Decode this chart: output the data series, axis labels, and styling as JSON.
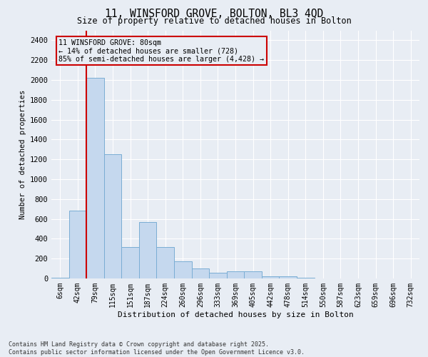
{
  "title": "11, WINSFORD GROVE, BOLTON, BL3 4QD",
  "subtitle": "Size of property relative to detached houses in Bolton",
  "xlabel": "Distribution of detached houses by size in Bolton",
  "ylabel": "Number of detached properties",
  "bar_values": [
    5,
    680,
    2020,
    1250,
    320,
    570,
    320,
    175,
    100,
    55,
    75,
    75,
    25,
    20,
    5,
    0,
    0,
    0,
    0,
    0,
    0
  ],
  "bin_labels": [
    "6sqm",
    "42sqm",
    "79sqm",
    "115sqm",
    "151sqm",
    "187sqm",
    "224sqm",
    "260sqm",
    "296sqm",
    "333sqm",
    "369sqm",
    "405sqm",
    "442sqm",
    "478sqm",
    "514sqm",
    "550sqm",
    "587sqm",
    "623sqm",
    "659sqm",
    "696sqm",
    "732sqm"
  ],
  "bar_color": "#c5d8ee",
  "bar_edge_color": "#7aadd4",
  "bg_color": "#e8edf4",
  "grid_color": "#d0d8e4",
  "vline_color": "#cc0000",
  "annotation_text": "11 WINSFORD GROVE: 80sqm\n← 14% of detached houses are smaller (728)\n85% of semi-detached houses are larger (4,428) →",
  "annotation_box_color": "#cc0000",
  "ylim": [
    0,
    2500
  ],
  "yticks": [
    0,
    200,
    400,
    600,
    800,
    1000,
    1200,
    1400,
    1600,
    1800,
    2000,
    2200,
    2400
  ],
  "footnote": "Contains HM Land Registry data © Crown copyright and database right 2025.\nContains public sector information licensed under the Open Government Licence v3.0."
}
